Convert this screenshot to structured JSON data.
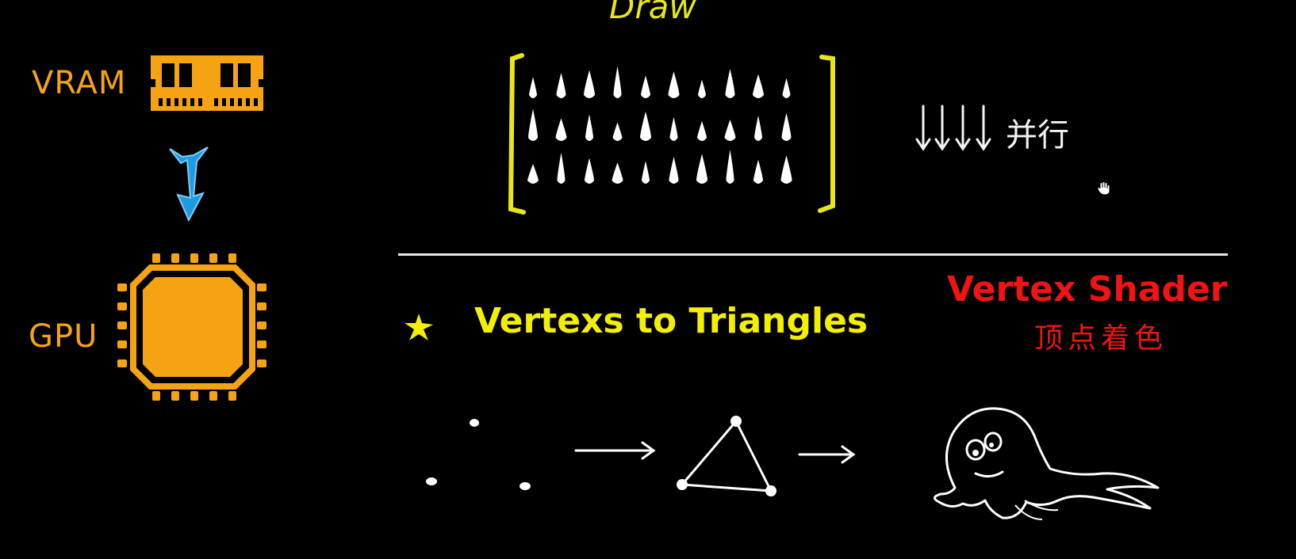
{
  "hardware": {
    "vram_label": "VRAM",
    "gpu_label": "GPU",
    "vram_color": "#f5a312",
    "arrow_color": "#1e9be0"
  },
  "draw_section": {
    "title": "Draw",
    "parallel_label": "并行",
    "bracket_color": "#e6e61a",
    "grid_rows": 3,
    "grid_cols": 10
  },
  "bottom_section": {
    "heading": "Vertexs to Triangles",
    "shader_title": "Vertex Shader",
    "shader_subtitle": "顶点着色",
    "heading_color": "#f2f000",
    "shader_color": "#f01414"
  }
}
